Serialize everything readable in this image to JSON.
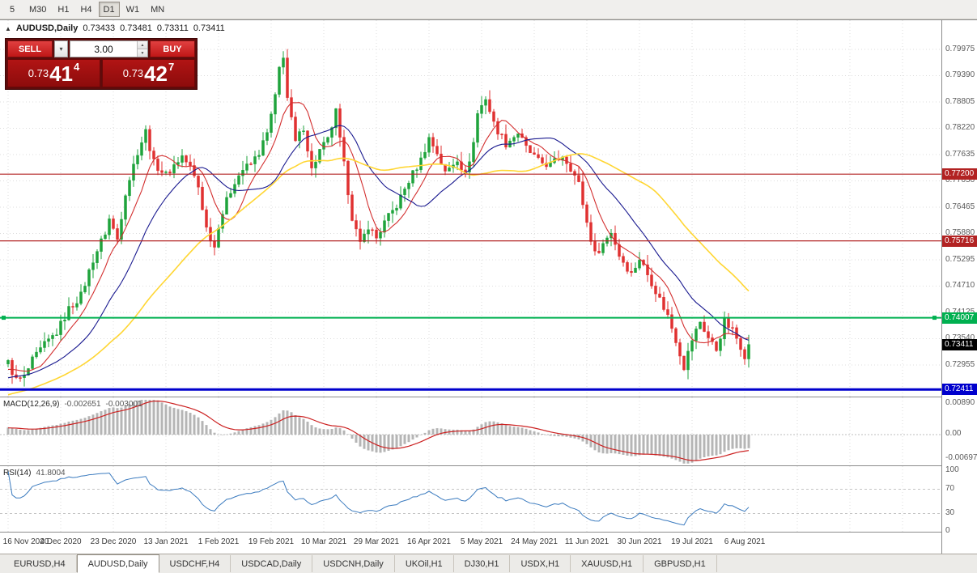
{
  "toolbar": {
    "timeframes": [
      "5",
      "M30",
      "H1",
      "H4",
      "D1",
      "W1",
      "MN"
    ],
    "active": "D1"
  },
  "chart": {
    "header": {
      "title": "AUDUSD,Daily",
      "open": "0.73433",
      "high": "0.73481",
      "low": "0.73311",
      "close": "0.73411"
    }
  },
  "trade": {
    "sell_label": "SELL",
    "buy_label": "BUY",
    "volume": "3.00",
    "sell_price": {
      "base": "0.73",
      "pips": "41",
      "point": "4"
    },
    "buy_price": {
      "base": "0.73",
      "pips": "42",
      "point": "7"
    }
  },
  "chart_data": {
    "type": "candlestick",
    "symbol": "AUDUSD",
    "timeframe": "Daily",
    "ohlc": {
      "open": 0.73433,
      "high": 0.73481,
      "low": 0.73311,
      "close": 0.73411
    },
    "bid": 0.73414,
    "ask": 0.73427,
    "bar_count": 184,
    "last_close": 0.73411,
    "close_anchors": [
      [
        0,
        0.73
      ],
      [
        2,
        0.7262
      ],
      [
        4,
        0.7268
      ],
      [
        6,
        0.7305
      ],
      [
        9,
        0.734
      ],
      [
        12,
        0.7368
      ],
      [
        15,
        0.742
      ],
      [
        18,
        0.745
      ],
      [
        21,
        0.753
      ],
      [
        24,
        0.759
      ],
      [
        25,
        0.762
      ],
      [
        27,
        0.7575
      ],
      [
        29,
        0.768
      ],
      [
        32,
        0.777
      ],
      [
        34,
        0.7815
      ],
      [
        36,
        0.7745
      ],
      [
        39,
        0.7718
      ],
      [
        41,
        0.774
      ],
      [
        43,
        0.776
      ],
      [
        45,
        0.7735
      ],
      [
        47,
        0.7692
      ],
      [
        49,
        0.76
      ],
      [
        51,
        0.7558
      ],
      [
        52,
        0.7608
      ],
      [
        54,
        0.766
      ],
      [
        56,
        0.7705
      ],
      [
        58,
        0.773
      ],
      [
        60,
        0.7742
      ],
      [
        62,
        0.7768
      ],
      [
        64,
        0.781
      ],
      [
        66,
        0.789
      ],
      [
        67,
        0.7955
      ],
      [
        68,
        0.7985
      ],
      [
        69,
        0.789
      ],
      [
        70,
        0.784
      ],
      [
        71,
        0.779
      ],
      [
        73,
        0.7825
      ],
      [
        75,
        0.773
      ],
      [
        77,
        0.7772
      ],
      [
        79,
        0.7795
      ],
      [
        81,
        0.7858
      ],
      [
        82,
        0.7795
      ],
      [
        83,
        0.774
      ],
      [
        85,
        0.7625
      ],
      [
        87,
        0.7562
      ],
      [
        89,
        0.7605
      ],
      [
        91,
        0.7578
      ],
      [
        93,
        0.7612
      ],
      [
        96,
        0.765
      ],
      [
        99,
        0.7705
      ],
      [
        102,
        0.7752
      ],
      [
        104,
        0.78
      ],
      [
        106,
        0.7768
      ],
      [
        108,
        0.7722
      ],
      [
        111,
        0.7755
      ],
      [
        113,
        0.7718
      ],
      [
        115,
        0.779
      ],
      [
        116,
        0.7855
      ],
      [
        118,
        0.789
      ],
      [
        120,
        0.7832
      ],
      [
        123,
        0.7788
      ],
      [
        126,
        0.7812
      ],
      [
        128,
        0.7778
      ],
      [
        131,
        0.7748
      ],
      [
        134,
        0.774
      ],
      [
        137,
        0.7762
      ],
      [
        139,
        0.7735
      ],
      [
        141,
        0.7698
      ],
      [
        143,
        0.7612
      ],
      [
        145,
        0.7542
      ],
      [
        147,
        0.7565
      ],
      [
        149,
        0.7592
      ],
      [
        151,
        0.754
      ],
      [
        154,
        0.7498
      ],
      [
        156,
        0.7532
      ],
      [
        159,
        0.748
      ],
      [
        161,
        0.7442
      ],
      [
        163,
        0.7405
      ],
      [
        165,
        0.7352
      ],
      [
        167,
        0.7292
      ],
      [
        169,
        0.7352
      ],
      [
        171,
        0.7392
      ],
      [
        173,
        0.7356
      ],
      [
        175,
        0.733
      ],
      [
        177,
        0.7392
      ],
      [
        179,
        0.7372
      ],
      [
        181,
        0.7338
      ],
      [
        182,
        0.7318
      ],
      [
        183,
        0.73411
      ]
    ],
    "y_ticks": [
      "0.79975",
      "0.79390",
      "0.78805",
      "0.78220",
      "0.77635",
      "0.77050",
      "0.76465",
      "0.75880",
      "0.75295",
      "0.74710",
      "0.74125",
      "0.73540",
      "0.72955"
    ],
    "x_ticks": [
      "16 Nov 2020",
      "4 Dec 2020",
      "23 Dec 2020",
      "13 Jan 2021",
      "1 Feb 2021",
      "19 Feb 2021",
      "10 Mar 2021",
      "29 Mar 2021",
      "16 Apr 2021",
      "5 May 2021",
      "24 May 2021",
      "11 Jun 2021",
      "30 Jun 2021",
      "19 Jul 2021",
      "6 Aug 2021"
    ],
    "hlines": [
      {
        "price": 0.772,
        "label": "0.77200",
        "color": "#b22222",
        "width": 1.2
      },
      {
        "price": 0.75716,
        "label": "0.75716",
        "color": "#b22222",
        "width": 1.2
      },
      {
        "price": 0.74007,
        "label": "0.74007",
        "color": "#00b050",
        "width": 2
      },
      {
        "price": 0.72411,
        "label": "0.72411",
        "color": "#0000cd",
        "width": 3
      }
    ],
    "current_price_marker": {
      "price": 0.73411,
      "label": "0.73411",
      "color": "#000000"
    },
    "moving_averages": [
      {
        "period": 8,
        "color": "#d32f2f"
      },
      {
        "period": 20,
        "color": "#19198f"
      },
      {
        "period": 45,
        "color": "#ffd633"
      }
    ],
    "candle_colors": {
      "up": "#1fa33c",
      "down": "#e03131"
    }
  },
  "indicators": {
    "macd": {
      "name": "MACD(12,26,9)",
      "value_main": "-0.002651",
      "value_signal": "-0.003001",
      "axis_labels": [
        "0.00890",
        "0.00",
        "-0.00697"
      ],
      "histogram_color": "#b5b5b5",
      "signal_color": "#cc2222"
    },
    "rsi": {
      "name": "RSI(14)",
      "value": "41.8004",
      "axis_labels": [
        "100",
        "70",
        "30",
        "0"
      ],
      "levels": [
        70,
        30
      ],
      "line_color": "#3b7bbf"
    }
  },
  "tabs": {
    "items": [
      "EURUSD,H4",
      "AUDUSD,Daily",
      "USDCHF,H4",
      "USDCAD,Daily",
      "USDCNH,Daily",
      "UKOil,H1",
      "DJ30,H1",
      "USDX,H1",
      "XAUUSD,H1",
      "GBPUSD,H1"
    ],
    "active_index": 1
  }
}
